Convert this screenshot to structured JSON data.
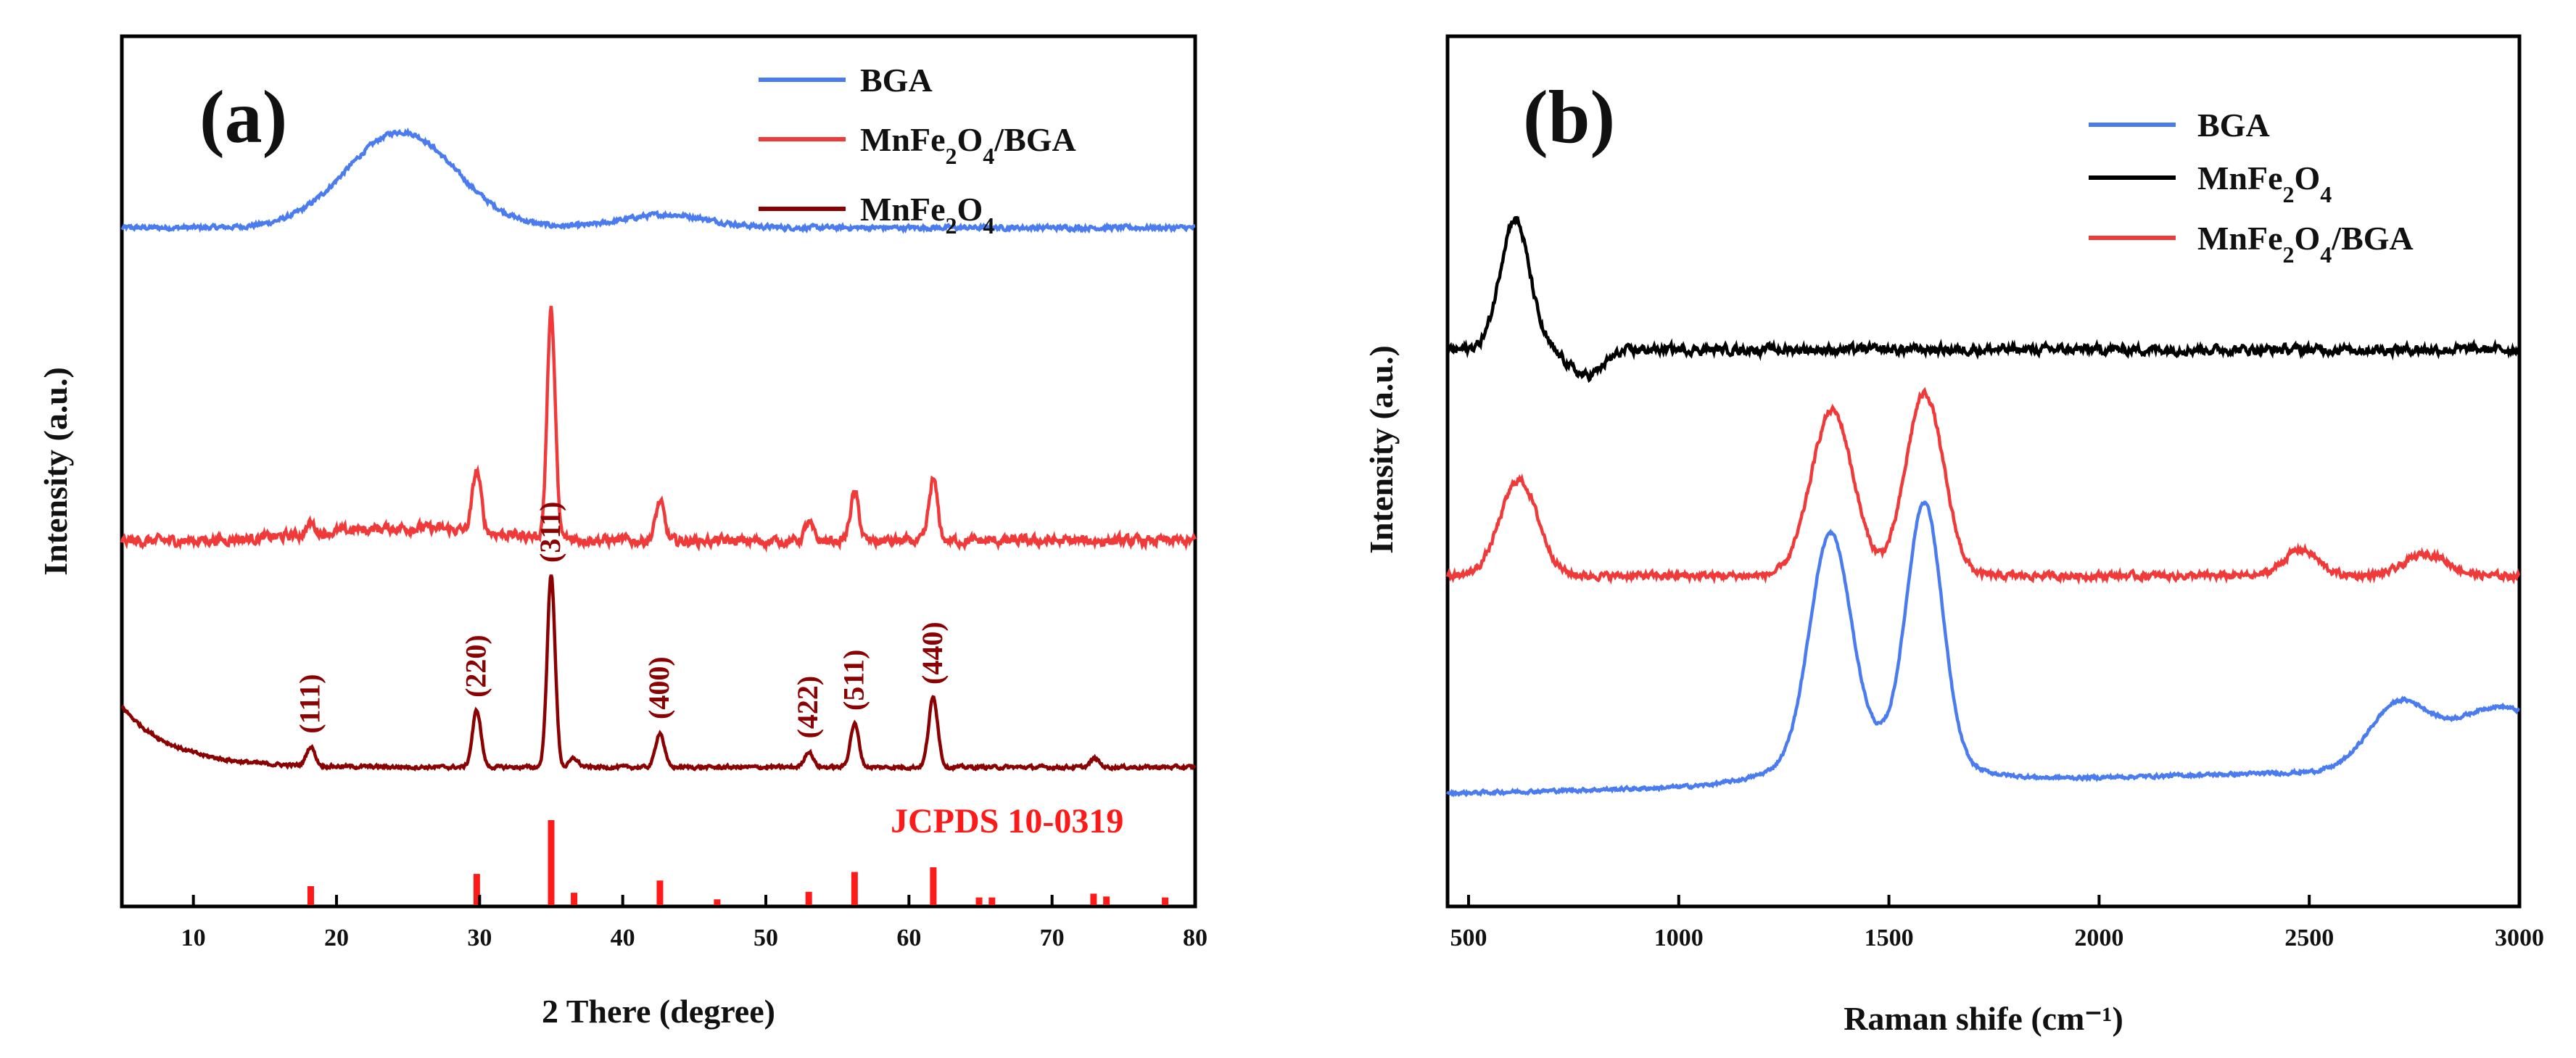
{
  "chart_data": [
    {
      "type": "line",
      "panel": "(a)",
      "xlabel": "2 There (degree)",
      "ylabel": "Intensity (a.u.)",
      "xlim": [
        5,
        80
      ],
      "xticks": [
        "10",
        "20",
        "30",
        "40",
        "50",
        "60",
        "70",
        "80"
      ],
      "legend_position": "top-right",
      "series": [
        {
          "name": "BGA",
          "color": "#4a7cf0",
          "offset": 0.78,
          "humps": [
            [
              24.5,
              0.11,
              3.8
            ],
            [
              43,
              0.015,
              3
            ]
          ],
          "noise": 0.004
        },
        {
          "name": "MnFe2O4/BGA",
          "color": "#f03a3a",
          "offset": 0.42,
          "humps": [
            [
              25,
              0.015,
              6
            ],
            [
              29.8,
              0.07,
              0.3
            ],
            [
              35,
              0.26,
              0.28
            ],
            [
              42.6,
              0.045,
              0.3
            ],
            [
              53,
              0.02,
              0.3
            ],
            [
              56.2,
              0.055,
              0.3
            ],
            [
              61.7,
              0.07,
              0.3
            ],
            [
              18.2,
              0.012,
              0.3
            ]
          ],
          "noise": 0.009
        },
        {
          "name": "MnFe2O4",
          "color": "#8b0000",
          "offset": 0.16,
          "decay": [
            0.07,
            3.5
          ],
          "humps": [
            [
              18.2,
              0.022,
              0.3
            ],
            [
              29.8,
              0.065,
              0.3
            ],
            [
              35,
              0.22,
              0.28
            ],
            [
              36.6,
              0.01,
              0.3
            ],
            [
              42.6,
              0.04,
              0.3
            ],
            [
              53,
              0.018,
              0.3
            ],
            [
              56.2,
              0.05,
              0.3
            ],
            [
              61.7,
              0.08,
              0.32
            ],
            [
              73,
              0.01,
              0.3
            ]
          ],
          "noise": 0.003
        }
      ],
      "legend_entries": [
        {
          "label": "BGA",
          "color": "#4a7cf0"
        },
        {
          "label": "MnFe2O4/BGA",
          "color": "#f03a3a"
        },
        {
          "label": "MnFe2O4",
          "color": "#8b0000"
        }
      ],
      "peak_labels": [
        {
          "text": "(111)",
          "x": 18.2
        },
        {
          "text": "(220)",
          "x": 29.8
        },
        {
          "text": "(311)",
          "x": 35.0
        },
        {
          "text": "(400)",
          "x": 42.6
        },
        {
          "text": "(422)",
          "x": 53.0
        },
        {
          "text": "(511)",
          "x": 56.2
        },
        {
          "text": "(440)",
          "x": 61.7
        }
      ],
      "reference": {
        "label": "JCPDS 10-0319",
        "color": "#ff1a1a",
        "positions": [
          18.2,
          29.8,
          35.0,
          36.6,
          42.6,
          46.6,
          53.0,
          56.2,
          61.7,
          64.9,
          65.8,
          72.9,
          73.8,
          77.9
        ],
        "heights": [
          0.2,
          0.33,
          0.9,
          0.13,
          0.26,
          0.06,
          0.14,
          0.35,
          0.4,
          0.08,
          0.08,
          0.12,
          0.09,
          0.08
        ]
      }
    },
    {
      "type": "line",
      "panel": "(b)",
      "xlabel": "Raman shife (cm⁻¹)",
      "ylabel": "Intensity (a.u.)",
      "xlim": [
        450,
        3000
      ],
      "xticks": [
        "500",
        "1000",
        "1500",
        "2000",
        "2500",
        "3000"
      ],
      "legend_position": "top-right",
      "series": [
        {
          "name": "BGA",
          "color": "#4a7cf0",
          "offset": 0.13,
          "humps": [
            [
              1360,
              0.25,
              48
            ],
            [
              1585,
              0.29,
              42
            ],
            [
              1450,
              0.045,
              160
            ],
            [
              2710,
              0.07,
              70
            ],
            [
              2950,
              0.07,
              120
            ]
          ],
          "slope": 0.03,
          "noise": 0.003
        },
        {
          "name": "MnFe2O4",
          "color": "#000000",
          "offset": 0.64,
          "humps": [
            [
              610,
              0.15,
              35
            ],
            [
              780,
              -0.03,
              40
            ]
          ],
          "noise": 0.008
        },
        {
          "name": "MnFe2O4/BGA",
          "color": "#f03a3a",
          "offset": 0.38,
          "humps": [
            [
              620,
              0.11,
              45
            ],
            [
              1365,
              0.19,
              50
            ],
            [
              1585,
              0.21,
              45
            ],
            [
              2480,
              0.03,
              40
            ],
            [
              2780,
              0.025,
              50
            ]
          ],
          "noise": 0.006
        }
      ],
      "legend_entries": [
        {
          "label": "BGA",
          "color": "#4a7cf0"
        },
        {
          "label": "MnFe2O4",
          "color": "#000000"
        },
        {
          "label": "MnFe2O4/BGA",
          "color": "#f03a3a"
        }
      ]
    }
  ]
}
